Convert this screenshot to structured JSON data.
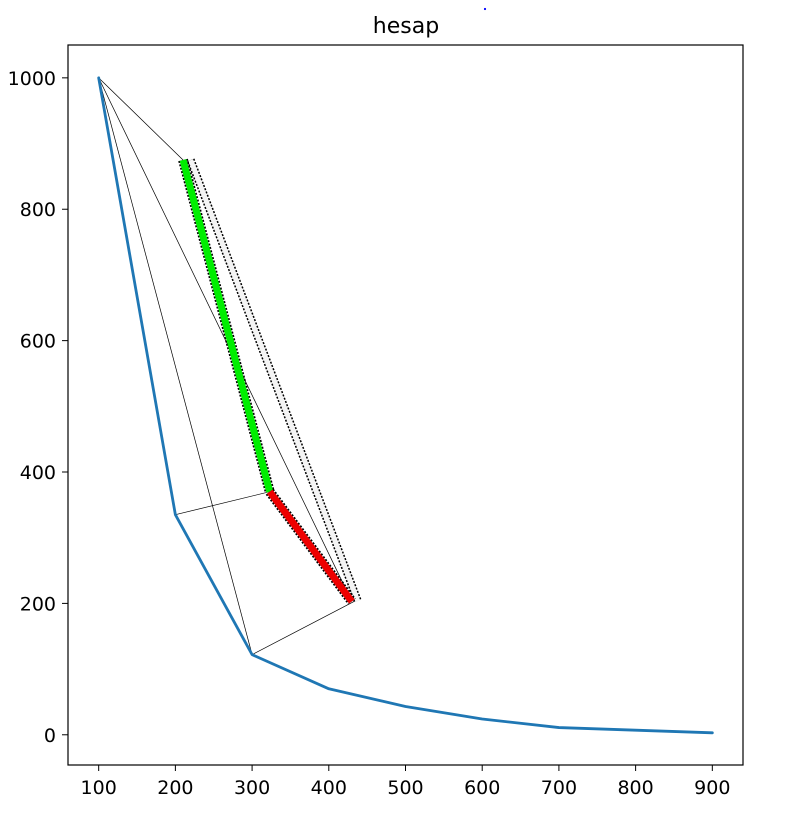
{
  "chart_data": {
    "type": "line",
    "title": "hesap",
    "xlabel": "",
    "ylabel": "",
    "xlim": [
      60,
      940
    ],
    "ylim": [
      -46,
      1050
    ],
    "x_ticks": [
      100,
      200,
      300,
      400,
      500,
      600,
      700,
      800,
      900
    ],
    "y_ticks": [
      0,
      200,
      400,
      600,
      800,
      1000
    ],
    "x_tick_labels": [
      "100",
      "200",
      "300",
      "400",
      "500",
      "600",
      "700",
      "800",
      "900"
    ],
    "y_tick_labels": [
      "0",
      "200",
      "400",
      "600",
      "800",
      "1000"
    ],
    "grid": false,
    "legend": "none",
    "series": [
      {
        "color": "#1f77b4",
        "x": [
          100,
          200,
          300,
          400,
          500,
          600,
          700,
          800,
          900
        ],
        "y": [
          1000,
          335,
          122,
          70,
          43,
          24,
          11,
          7,
          3
        ]
      }
    ],
    "overlay_lines": [
      {
        "x": [
          100,
          210
        ],
        "y": [
          1000,
          875
        ]
      },
      {
        "x": [
          100,
          430
        ],
        "y": [
          1000,
          203
        ]
      },
      {
        "x": [
          100,
          300
        ],
        "y": [
          1000,
          122
        ]
      },
      {
        "x": [
          200,
          323
        ],
        "y": [
          335,
          370
        ]
      },
      {
        "x": [
          300,
          433
        ],
        "y": [
          122,
          203
        ]
      }
    ],
    "green_band": {
      "from": [
        210,
        875
      ],
      "to": [
        323,
        370
      ],
      "color": "#00ee00"
    },
    "red_band": {
      "from": [
        323,
        370
      ],
      "to": [
        430,
        203
      ],
      "color": "#ee0000"
    },
    "white_band": {
      "from": [
        220,
        875
      ],
      "to": [
        438,
        203
      ],
      "color": "#f4f4f4"
    }
  }
}
